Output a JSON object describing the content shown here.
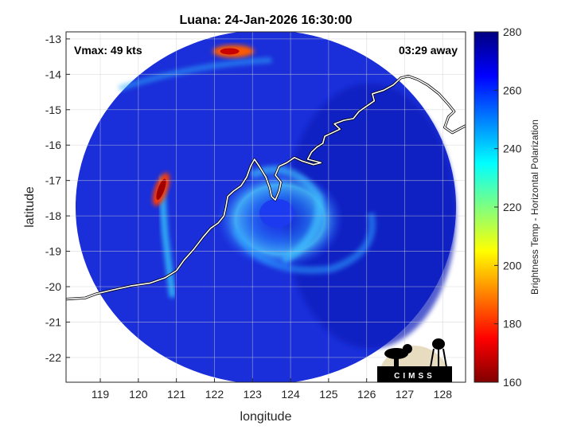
{
  "chart_data": {
    "type": "heatmap",
    "title": "Luana: 24-Jan-2026 16:30:00",
    "xlabel": "longitude",
    "ylabel": "latitude",
    "xlim": [
      118.1,
      128.6
    ],
    "ylim": [
      -22.7,
      -12.8
    ],
    "x_ticks": [
      119,
      120,
      121,
      122,
      123,
      124,
      125,
      126,
      127,
      128
    ],
    "y_ticks": [
      -13,
      -14,
      -15,
      -16,
      -17,
      -18,
      -19,
      -20,
      -21,
      -22
    ],
    "grid": true,
    "annotation_left": "Vmax: 49 kts",
    "annotation_right": "03:29 away",
    "colorbar": {
      "label": "Brightness Temp - Horizontal Polarization",
      "range": [
        160,
        280
      ],
      "ticks": [
        160,
        180,
        200,
        220,
        240,
        260,
        280
      ],
      "colormap": "jet"
    },
    "swath": {
      "center_lon": 123.35,
      "center_lat": -17.75,
      "radius_deg": 5.0
    },
    "storm_center": {
      "lon": 123.6,
      "lat": -17.7
    },
    "coastline": [
      [
        118.1,
        -20.35
      ],
      [
        118.6,
        -20.32
      ],
      [
        118.9,
        -20.2
      ],
      [
        119.3,
        -20.1
      ],
      [
        119.8,
        -19.98
      ],
      [
        120.3,
        -19.9
      ],
      [
        120.7,
        -19.75
      ],
      [
        121.0,
        -19.55
      ],
      [
        121.2,
        -19.25
      ],
      [
        121.45,
        -18.95
      ],
      [
        121.7,
        -18.6
      ],
      [
        121.9,
        -18.35
      ],
      [
        122.1,
        -18.2
      ],
      [
        122.25,
        -18.0
      ],
      [
        122.3,
        -17.75
      ],
      [
        122.35,
        -17.45
      ],
      [
        122.5,
        -17.3
      ],
      [
        122.7,
        -17.15
      ],
      [
        122.85,
        -16.9
      ],
      [
        122.95,
        -16.6
      ],
      [
        123.05,
        -16.4
      ],
      [
        123.15,
        -16.55
      ],
      [
        123.35,
        -16.9
      ],
      [
        123.45,
        -17.2
      ],
      [
        123.5,
        -17.45
      ],
      [
        123.6,
        -17.55
      ],
      [
        123.7,
        -17.3
      ],
      [
        123.75,
        -17.05
      ],
      [
        123.6,
        -16.85
      ],
      [
        123.7,
        -16.6
      ],
      [
        123.9,
        -16.5
      ],
      [
        124.1,
        -16.35
      ],
      [
        124.3,
        -16.45
      ],
      [
        124.6,
        -16.55
      ],
      [
        124.8,
        -16.5
      ],
      [
        124.45,
        -16.4
      ],
      [
        124.55,
        -16.2
      ],
      [
        124.7,
        -16.05
      ],
      [
        124.85,
        -15.95
      ],
      [
        124.9,
        -15.75
      ],
      [
        125.1,
        -15.65
      ],
      [
        125.3,
        -15.55
      ],
      [
        125.15,
        -15.4
      ],
      [
        125.4,
        -15.3
      ],
      [
        125.65,
        -15.25
      ],
      [
        125.8,
        -15.05
      ],
      [
        126.0,
        -14.9
      ],
      [
        126.2,
        -14.75
      ],
      [
        126.15,
        -14.55
      ],
      [
        126.45,
        -14.45
      ],
      [
        126.7,
        -14.3
      ],
      [
        126.9,
        -14.1
      ],
      [
        127.1,
        -14.05
      ],
      [
        127.35,
        -14.15
      ],
      [
        127.6,
        -14.3
      ],
      [
        127.9,
        -14.55
      ],
      [
        128.15,
        -14.85
      ],
      [
        128.3,
        -15.05
      ],
      [
        128.15,
        -15.2
      ],
      [
        128.05,
        -15.5
      ],
      [
        128.25,
        -15.65
      ],
      [
        128.6,
        -15.45
      ]
    ]
  }
}
